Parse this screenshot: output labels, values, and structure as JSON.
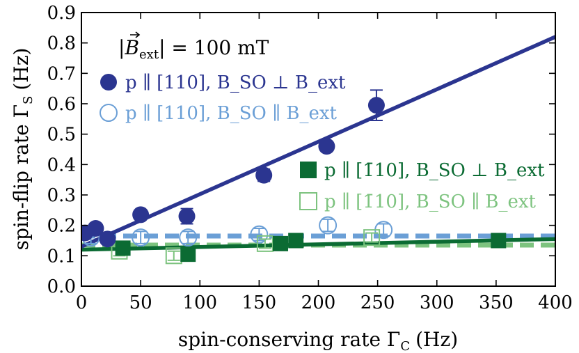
{
  "chart_data": {
    "type": "scatter",
    "xlabel": "spin-conserving rate Γ",
    "xlabel_sub": "C",
    "xlabel_unit": "(Hz)",
    "ylabel": "spin-flip rate Γ",
    "ylabel_sub": "S",
    "ylabel_unit": "(Hz)",
    "xlim": [
      0,
      400
    ],
    "ylim": [
      0.0,
      0.9
    ],
    "x_ticks": [
      "0",
      "50",
      "100",
      "150",
      "200",
      "250",
      "300",
      "350",
      "400"
    ],
    "y_ticks": [
      "0.0",
      "0.1",
      "0.2",
      "0.3",
      "0.4",
      "0.5",
      "0.6",
      "0.7",
      "0.8",
      "0.9"
    ],
    "grid": false,
    "annotation": "|B_ext| = 100 mT",
    "legend_position": "upper-left / middle-right",
    "series": [
      {
        "name": "p ∥ [110], B_SO ⊥ B_ext",
        "marker": "filled-circle",
        "color": "#2b3590",
        "x": [
          3,
          12,
          22,
          50,
          89,
          154,
          207,
          249
        ],
        "y": [
          0.175,
          0.19,
          0.155,
          0.235,
          0.23,
          0.365,
          0.46,
          0.595
        ],
        "yerr": [
          0.01,
          0.01,
          0.01,
          0.015,
          0.025,
          0.02,
          0.015,
          0.05
        ],
        "fit": {
          "style": "solid",
          "x": [
            0,
            400
          ],
          "y": [
            0.13,
            0.82
          ]
        }
      },
      {
        "name": "p ∥ [110], B_SO ∥ B_ext",
        "marker": "open-circle",
        "color": "#6b9fd6",
        "x": [
          8,
          50,
          90,
          150,
          208,
          255
        ],
        "y": [
          0.16,
          0.16,
          0.16,
          0.17,
          0.2,
          0.185
        ],
        "yerr": [
          0.02,
          0.02,
          0.02,
          0.02,
          0.02,
          0.02
        ],
        "fit": {
          "style": "dashed",
          "x": [
            0,
            400
          ],
          "y": [
            0.165,
            0.165
          ]
        }
      },
      {
        "name": "p ∥ [1̄10], B_SO ⊥ B_ext",
        "marker": "filled-square",
        "color": "#0b6b33",
        "x": [
          35,
          90,
          168,
          181,
          352
        ],
        "y": [
          0.125,
          0.105,
          0.14,
          0.15,
          0.15
        ],
        "yerr": [
          0.01,
          0.01,
          0.01,
          0.01,
          0.01
        ],
        "fit": {
          "style": "solid",
          "x": [
            0,
            400
          ],
          "y": [
            0.12,
            0.155
          ]
        }
      },
      {
        "name": "p ∥ [1̄10], B_SO ∥ B_ext",
        "marker": "open-square",
        "color": "#7dc37f",
        "x": [
          32,
          78,
          155,
          245
        ],
        "y": [
          0.115,
          0.1,
          0.14,
          0.16
        ],
        "yerr": [
          0.015,
          0.015,
          0.015,
          0.015
        ],
        "fit": {
          "style": "dashed",
          "x": [
            0,
            400
          ],
          "y": [
            0.135,
            0.135
          ]
        }
      }
    ]
  }
}
